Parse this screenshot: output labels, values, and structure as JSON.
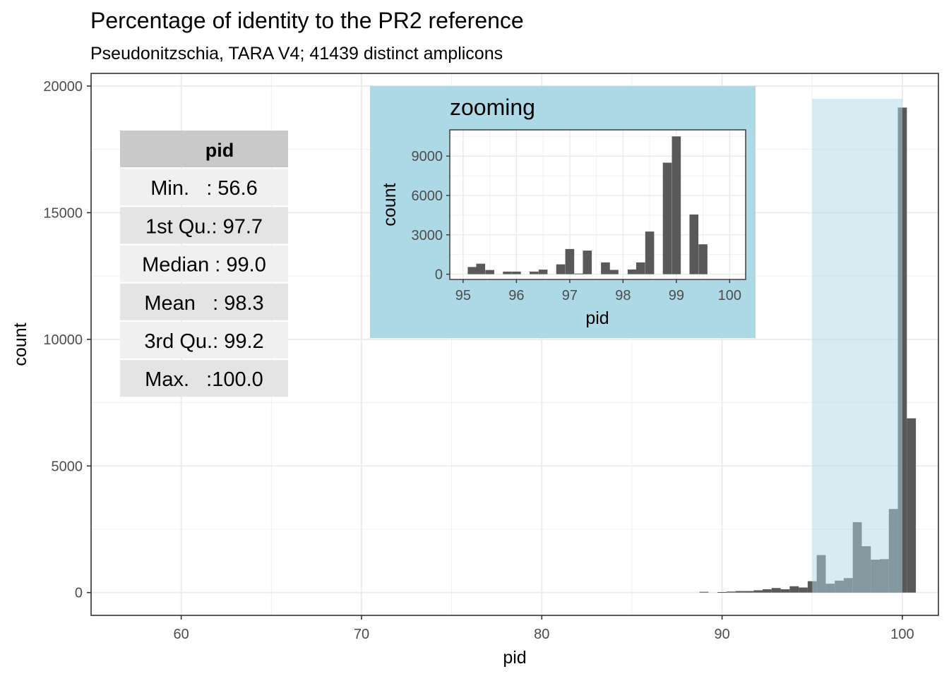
{
  "chart_data": [
    {
      "type": "bar",
      "title": "Percentage of identity to the PR2 reference",
      "subtitle": "Pseudonitzschia, TARA V4; 41439 distinct amplicons",
      "xlabel": "pid",
      "ylabel": "count",
      "xlim": [
        55,
        102
      ],
      "ylim": [
        -900,
        20500
      ],
      "x_ticks": [
        60,
        70,
        80,
        90,
        100
      ],
      "y_ticks": [
        0,
        5000,
        10000,
        15000,
        20000
      ],
      "grid": true,
      "bin_width": 0.5,
      "bar_color": "#595959",
      "bins": [
        {
          "x": 89.0,
          "count": 30
        },
        {
          "x": 90.0,
          "count": 20
        },
        {
          "x": 90.5,
          "count": 40
        },
        {
          "x": 91.0,
          "count": 60
        },
        {
          "x": 91.5,
          "count": 60
        },
        {
          "x": 92.0,
          "count": 90
        },
        {
          "x": 92.5,
          "count": 130
        },
        {
          "x": 93.0,
          "count": 180
        },
        {
          "x": 93.5,
          "count": 130
        },
        {
          "x": 94.0,
          "count": 250
        },
        {
          "x": 94.5,
          "count": 200
        },
        {
          "x": 95.0,
          "count": 450
        },
        {
          "x": 95.5,
          "count": 1480
        },
        {
          "x": 96.0,
          "count": 350
        },
        {
          "x": 96.5,
          "count": 470
        },
        {
          "x": 97.0,
          "count": 570
        },
        {
          "x": 97.5,
          "count": 2780
        },
        {
          "x": 98.0,
          "count": 1830
        },
        {
          "x": 98.5,
          "count": 1300
        },
        {
          "x": 99.0,
          "count": 1320
        },
        {
          "x": 99.5,
          "count": 3300
        },
        {
          "x": 100.0,
          "count": 19150
        },
        {
          "x": 100.5,
          "count": 6880
        }
      ],
      "highlight": {
        "range": [
          95,
          100
        ],
        "color": "#add8e6",
        "opacity": 0.5
      },
      "summary_table": {
        "header": "pid",
        "rows": [
          "Min.   : 56.6",
          "1st Qu.: 97.7",
          "Median : 99.0",
          "Mean   : 98.3",
          "3rd Qu.: 99.2",
          "Max.   :100.0"
        ]
      }
    },
    {
      "type": "bar",
      "title": "zooming",
      "xlabel": "pid",
      "ylabel": "count",
      "xlim": [
        94.75,
        100.3
      ],
      "ylim": [
        -400,
        11000
      ],
      "x_ticks": [
        95,
        96,
        97,
        98,
        99,
        100
      ],
      "y_ticks": [
        0,
        3000,
        6000,
        9000
      ],
      "grid": true,
      "bin_width": 0.167,
      "background": "#add8e6",
      "bar_color": "#595959",
      "bins": [
        {
          "x": 95.17,
          "count": 550
        },
        {
          "x": 95.33,
          "count": 800
        },
        {
          "x": 95.5,
          "count": 320
        },
        {
          "x": 95.83,
          "count": 200
        },
        {
          "x": 96.0,
          "count": 200
        },
        {
          "x": 96.33,
          "count": 200
        },
        {
          "x": 96.5,
          "count": 350
        },
        {
          "x": 96.83,
          "count": 750
        },
        {
          "x": 97.0,
          "count": 1920
        },
        {
          "x": 97.17,
          "count": 50
        },
        {
          "x": 97.33,
          "count": 1800
        },
        {
          "x": 97.67,
          "count": 900
        },
        {
          "x": 97.83,
          "count": 330
        },
        {
          "x": 98.17,
          "count": 360
        },
        {
          "x": 98.33,
          "count": 900
        },
        {
          "x": 98.5,
          "count": 3250
        },
        {
          "x": 98.83,
          "count": 8500
        },
        {
          "x": 99.0,
          "count": 10500
        },
        {
          "x": 99.33,
          "count": 4550
        },
        {
          "x": 99.5,
          "count": 2280
        }
      ]
    }
  ]
}
